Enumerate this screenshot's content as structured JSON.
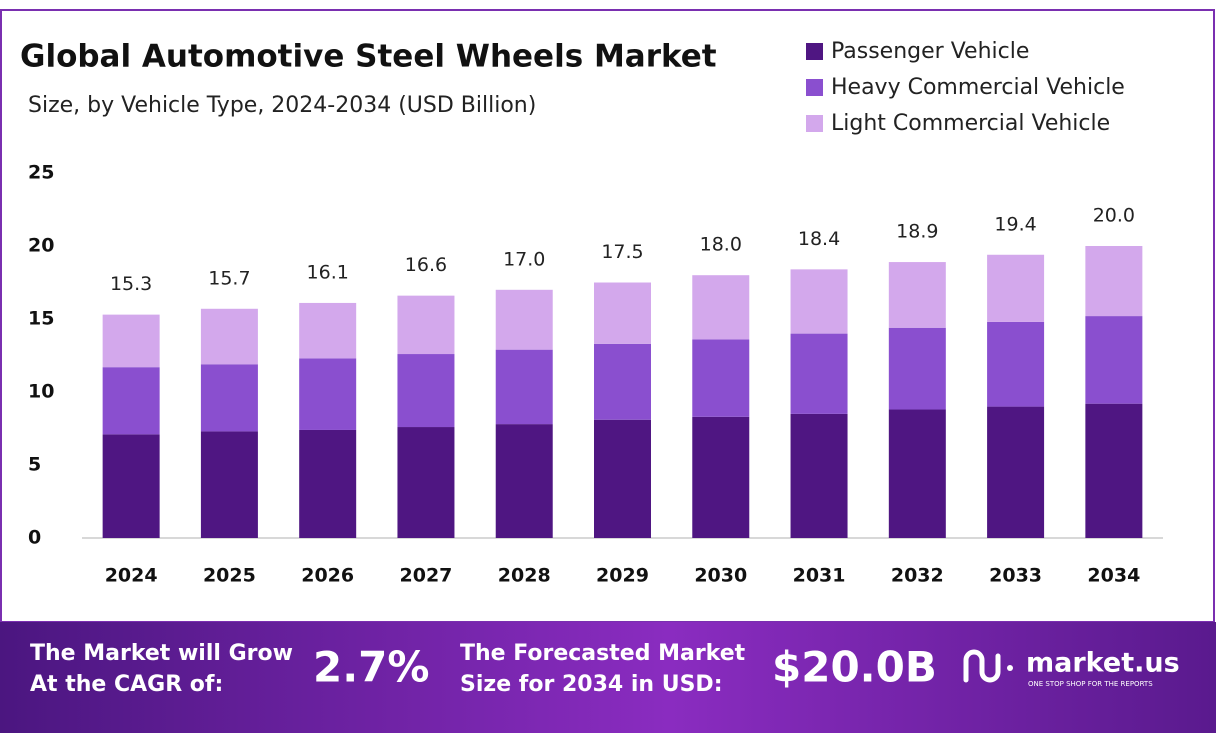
{
  "chart_data": {
    "type": "stacked_bar",
    "title": "Global Automotive Steel Wheels Market",
    "subtitle": "Size, by Vehicle Type, 2024-2034 (USD Billion)",
    "categories": [
      "2024",
      "2025",
      "2026",
      "2027",
      "2028",
      "2029",
      "2030",
      "2031",
      "2032",
      "2033",
      "2034"
    ],
    "series": [
      {
        "name": "Passenger Vehicle",
        "color": "#4f1682",
        "values": [
          7.1,
          7.3,
          7.4,
          7.6,
          7.8,
          8.1,
          8.3,
          8.5,
          8.8,
          9.0,
          9.2
        ]
      },
      {
        "name": "Heavy Commercial Vehicle",
        "color": "#8a4fcf",
        "values": [
          4.6,
          4.6,
          4.9,
          5.0,
          5.1,
          5.2,
          5.3,
          5.5,
          5.6,
          5.8,
          6.0
        ]
      },
      {
        "name": "Light Commercial Vehicle",
        "color": "#d3a8ec",
        "values": [
          3.6,
          3.8,
          3.8,
          4.0,
          4.1,
          4.2,
          4.4,
          4.4,
          4.5,
          4.6,
          4.8
        ]
      }
    ],
    "totals": {
      "values": [
        15.3,
        15.7,
        16.1,
        16.6,
        17.0,
        17.5,
        18.0,
        18.4,
        18.9,
        19.4,
        20.0
      ],
      "value_labels": [
        "15.3",
        "15.7",
        "16.1",
        "16.6",
        "17.0",
        "17.5",
        "18.0",
        "18.4",
        "18.9",
        "19.4",
        "20.0"
      ]
    },
    "ylim": [
      0,
      25
    ],
    "yticks": [
      0,
      5,
      10,
      15,
      20,
      25
    ],
    "grid": false,
    "legend": "top-right"
  },
  "footer": {
    "cagr_text": [
      "The Market will Grow",
      "At the CAGR of:"
    ],
    "cagr": "2.7%",
    "forecast_text": [
      "The Forecasted Market",
      "Size for 2034 in USD:"
    ],
    "forecast": "$20.0B",
    "brand": "market.us",
    "tagline": "ONE STOP SHOP FOR THE REPORTS"
  }
}
